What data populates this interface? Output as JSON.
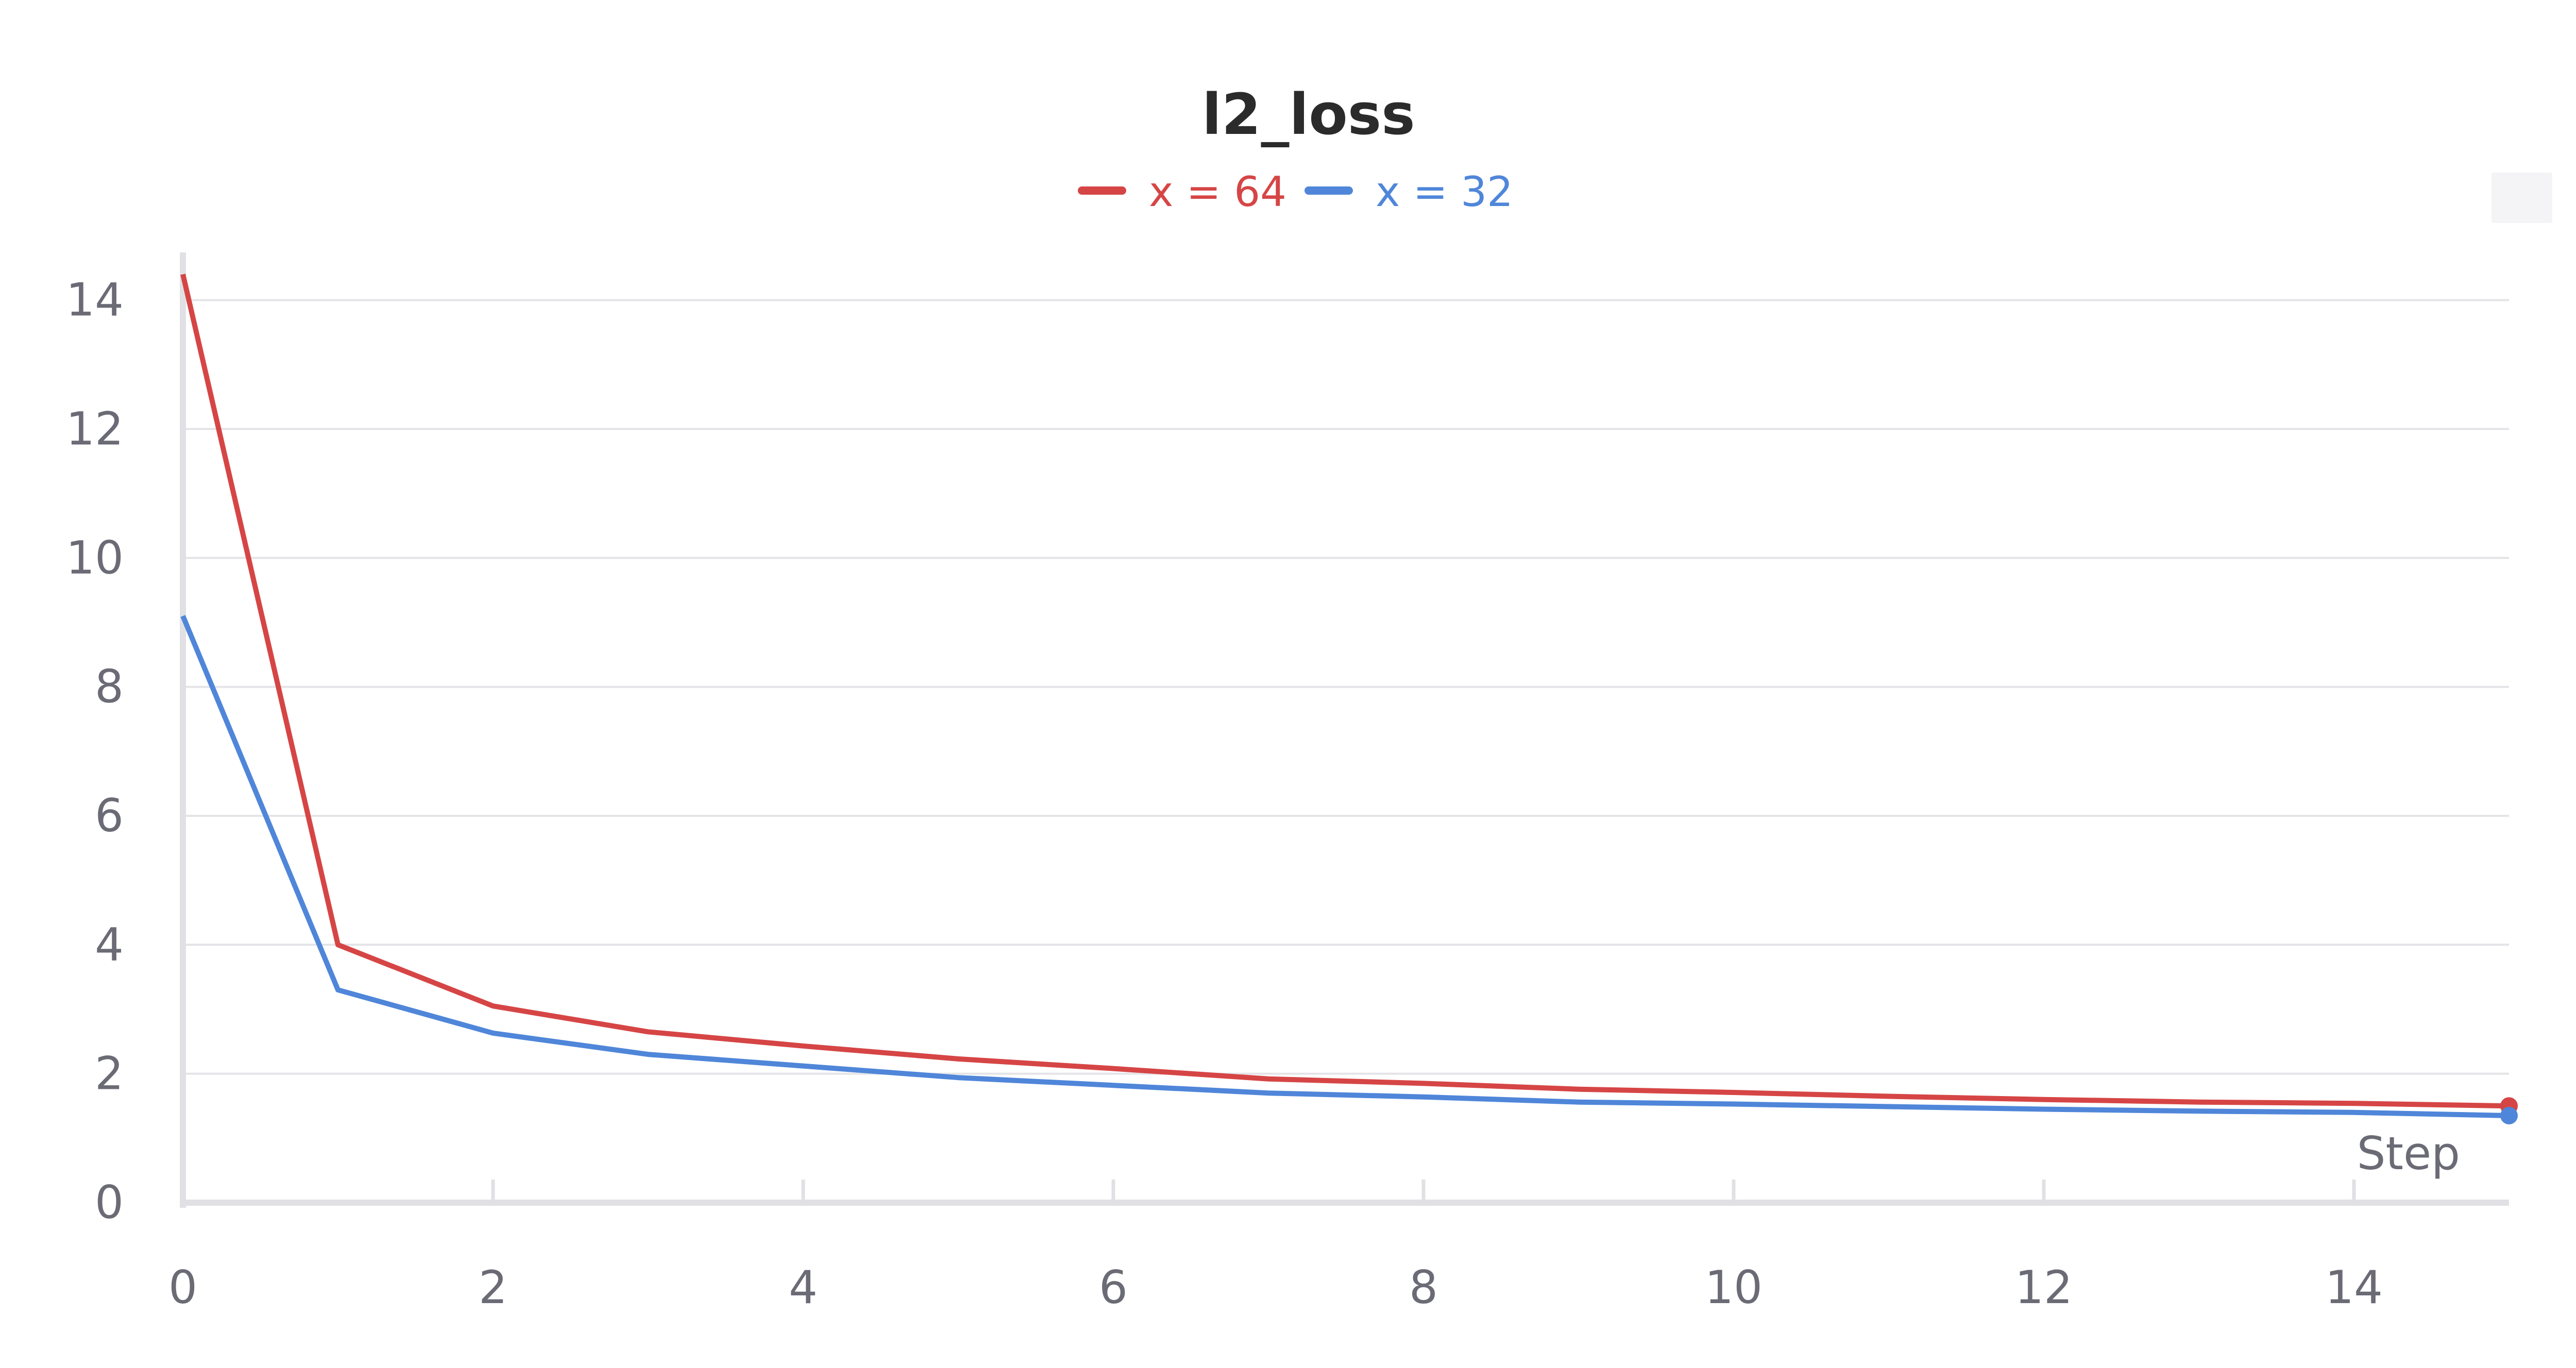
{
  "chart_data": {
    "type": "line",
    "title": "l2_loss",
    "xlabel": "Step",
    "ylabel": "",
    "xlim": [
      0,
      15
    ],
    "ylim": [
      0,
      14.5
    ],
    "xticks": [
      0,
      2,
      4,
      6,
      8,
      10,
      12,
      14
    ],
    "yticks": [
      0,
      2,
      4,
      6,
      8,
      10,
      12,
      14
    ],
    "grid": true,
    "legend_position": "top-center",
    "x": [
      0,
      1,
      2,
      3,
      4,
      5,
      6,
      7,
      8,
      9,
      10,
      11,
      12,
      13,
      14,
      15
    ],
    "series": [
      {
        "name": "x = 64",
        "color": "#d64545",
        "values": [
          14.4,
          4.0,
          3.05,
          2.65,
          2.43,
          2.23,
          2.08,
          1.92,
          1.85,
          1.76,
          1.71,
          1.65,
          1.6,
          1.56,
          1.54,
          1.5
        ]
      },
      {
        "name": "x = 32",
        "color": "#4f86d9",
        "values": [
          9.1,
          3.3,
          2.63,
          2.3,
          2.12,
          1.94,
          1.82,
          1.7,
          1.64,
          1.56,
          1.53,
          1.49,
          1.45,
          1.42,
          1.4,
          1.35
        ]
      }
    ]
  }
}
